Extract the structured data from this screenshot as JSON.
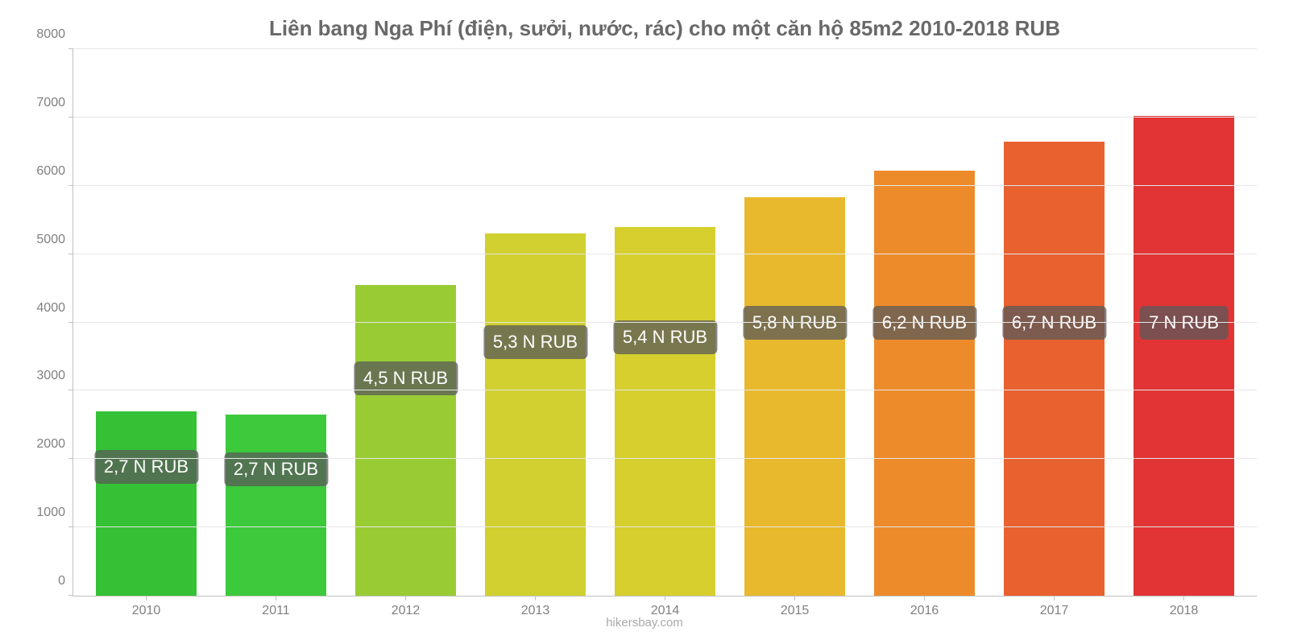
{
  "chart": {
    "type": "bar",
    "title": "Liên bang Nga Phí (điện, sưởi, nước, rác) cho một căn hộ 85m2 2010-2018 RUB",
    "title_fontsize": 26,
    "title_color": "#696969",
    "categories": [
      "2010",
      "2011",
      "2012",
      "2013",
      "2014",
      "2015",
      "2016",
      "2017",
      "2018"
    ],
    "values": [
      2700,
      2650,
      4550,
      5300,
      5400,
      5830,
      6220,
      6650,
      7020
    ],
    "value_labels": [
      "2,7 N RUB",
      "2,7 N RUB",
      "4,5 N RUB",
      "5,3 N RUB",
      "5,4 N RUB",
      "5,8 N RUB",
      "6,2 N RUB",
      "6,7 N RUB",
      "7 N RUB"
    ],
    "bar_colors": [
      "#35c135",
      "#3cc93c",
      "#99cc33",
      "#d0d030",
      "#d6cf2e",
      "#e8b92d",
      "#ed8b2b",
      "#e8612f",
      "#e23434"
    ],
    "ylim": [
      0,
      8000
    ],
    "ytick_step": 1000,
    "ytick_labels": [
      "0",
      "1000",
      "2000",
      "3000",
      "4000",
      "5000",
      "6000",
      "7000",
      "8000"
    ],
    "background_color": "#ffffff",
    "grid_color": "#e6e6e6",
    "axis_color": "#c0c0c0",
    "xtick_fontsize": 16,
    "ytick_fontsize": 16,
    "value_label_fontsize": 22,
    "value_label_bg": "rgba(90,90,90,0.75)",
    "value_label_color": "#ffffff",
    "bar_width": 0.78,
    "credit": "hikersbay.com",
    "credit_fontsize": 15,
    "credit_color": "#a9a9a9"
  }
}
